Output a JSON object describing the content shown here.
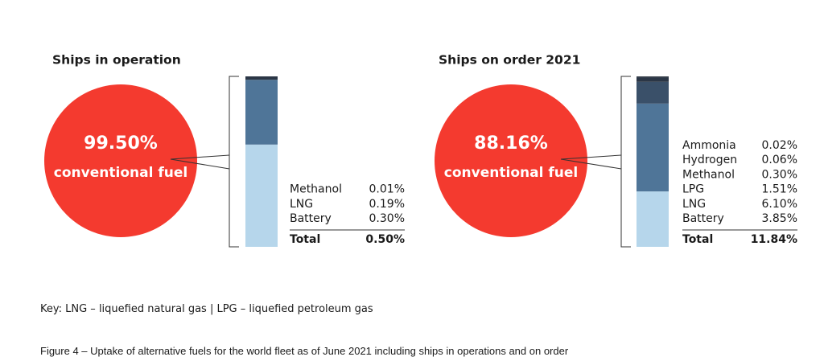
{
  "chart_data": [
    {
      "type": "bar-of-pie",
      "title": "Ships in operation",
      "pie": {
        "label": "conventional fuel",
        "value": 99.5,
        "value_label": "99.50%",
        "color": "#f43a2f"
      },
      "breakdown": {
        "series": [
          {
            "name": "Methanol",
            "values": [
              0.01
            ],
            "value_labels": [
              "0.01%"
            ],
            "color": "#2b3646"
          },
          {
            "name": "LNG",
            "values": [
              0.19
            ],
            "value_labels": [
              "0.19%"
            ],
            "color": "#4f7598"
          },
          {
            "name": "Battery",
            "values": [
              0.3
            ],
            "value_labels": [
              "0.30%"
            ],
            "color": "#b6d6eb"
          }
        ],
        "total_label": "Total",
        "total": 0.5,
        "total_value_label": "0.50%"
      }
    },
    {
      "type": "bar-of-pie",
      "title": "Ships on order 2021",
      "pie": {
        "label": "conventional fuel",
        "value": 88.16,
        "value_label": "88.16%",
        "color": "#f43a2f"
      },
      "breakdown": {
        "series": [
          {
            "name": "Ammonia",
            "values": [
              0.02
            ],
            "value_labels": [
              "0.02%"
            ],
            "color": "#1e2530"
          },
          {
            "name": "Hydrogen",
            "values": [
              0.06
            ],
            "value_labels": [
              "0.06%"
            ],
            "color": "#242e3b"
          },
          {
            "name": "Methanol",
            "values": [
              0.3
            ],
            "value_labels": [
              "0.30%"
            ],
            "color": "#2b3646"
          },
          {
            "name": "LPG",
            "values": [
              1.51
            ],
            "value_labels": [
              "1.51%"
            ],
            "color": "#3a5069"
          },
          {
            "name": "LNG",
            "values": [
              6.1
            ],
            "value_labels": [
              "6.10%"
            ],
            "color": "#4f7598"
          },
          {
            "name": "Battery",
            "values": [
              3.85
            ],
            "value_labels": [
              "3.85%"
            ],
            "color": "#b6d6eb"
          }
        ],
        "total_label": "Total",
        "total": 11.84,
        "total_value_label": "11.84%"
      }
    }
  ],
  "key": "Key: LNG – liquefied natural gas | LPG – liquefied petroleum gas",
  "caption": "Figure 4 – Uptake of alternative fuels for the world fleet as of June 2021 including ships in operations and on order"
}
